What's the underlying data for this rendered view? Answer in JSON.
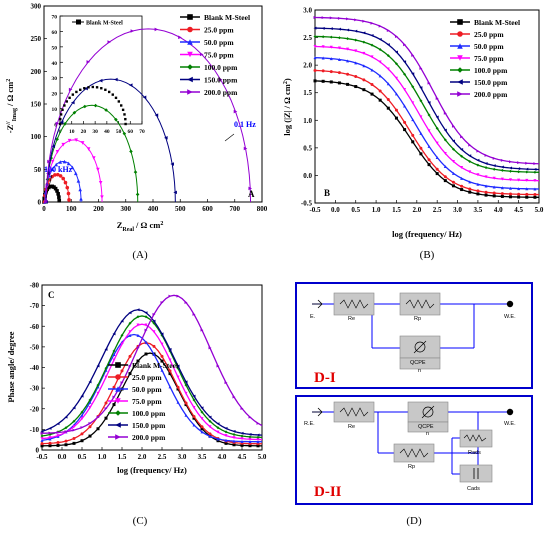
{
  "figure": {
    "colors": {
      "blank": "#000000",
      "p25": "#ee1c24",
      "p50": "#1f2bff",
      "p75": "#ff00ff",
      "p100": "#008000",
      "p150": "#000080",
      "p200": "#9400d3",
      "annotation": "#0000ff",
      "circuit_wire": "#0000ff",
      "circuit_box": "#c8c8c8",
      "circuit_label": "#e00000"
    },
    "legend": [
      "Blank M-Steel",
      "25.0 ppm",
      "50.0 ppm",
      "75.0 ppm",
      "100.0 ppm",
      "150.0 ppm",
      "200.0 ppm"
    ],
    "captions": {
      "a": "(A)",
      "b": "(B)",
      "c": "(C)",
      "d": "(D)"
    },
    "panel_letters": {
      "a": "A",
      "b": "B",
      "c": "C"
    },
    "circuit": {
      "d1": {
        "title": "D-I",
        "re": "E.",
        "we": "W.E.",
        "elements": [
          "Re",
          "Rp",
          "QCPE",
          "n"
        ]
      },
      "d2": {
        "title": "D-II",
        "re": "R.E.",
        "we": "W.E.",
        "elements": [
          "Re",
          "QCPE",
          "n",
          "Rads",
          "Rp",
          "Cads"
        ]
      }
    }
  },
  "chart_data": [
    {
      "type": "scatter",
      "panel": "A",
      "xlabel_main": "Z",
      "xlabel_sub": "Real",
      "xlabel_unit": "/ Ω cm",
      "ylabel_main": "-Z",
      "ylabel_sub": "Imag",
      "ylabel_unit": "/ Ω cm",
      "xlim": [
        0,
        800
      ],
      "ylim": [
        0,
        300
      ],
      "xticks": [
        0,
        100,
        200,
        300,
        400,
        500,
        600,
        700,
        800
      ],
      "yticks": [
        0,
        50,
        100,
        150,
        200,
        250,
        300
      ],
      "annotations": [
        "100 kHz",
        "0.1 Hz"
      ],
      "series": [
        {
          "name": "Blank M-Steel",
          "center": 28,
          "radius": 28,
          "max": 24
        },
        {
          "name": "25.0 ppm",
          "center": 47,
          "radius": 45,
          "max": 42
        },
        {
          "name": "50.0 ppm",
          "center": 70,
          "radius": 66,
          "max": 62
        },
        {
          "name": "75.0 ppm",
          "center": 110,
          "radius": 103,
          "max": 95
        },
        {
          "name": "100.0 ppm",
          "center": 176,
          "radius": 168,
          "max": 148
        },
        {
          "name": "150.0 ppm",
          "center": 245,
          "radius": 237,
          "max": 188
        },
        {
          "name": "200.0 ppm",
          "center": 383,
          "radius": 375,
          "max": 265
        }
      ],
      "inset": {
        "legend": "Blank M-Steel",
        "xlim": [
          0,
          70
        ],
        "ylim": [
          0,
          70
        ],
        "xticks": [
          0,
          10,
          20,
          30,
          40,
          50,
          60,
          70
        ],
        "yticks": [
          0,
          10,
          20,
          30,
          40,
          50,
          60,
          70
        ],
        "center": 28,
        "radius": 28,
        "max": 24
      }
    },
    {
      "type": "line",
      "panel": "B",
      "xlabel": "log (frequency/ Hz)",
      "ylabel": "log (|Z| / Ω cm",
      "xlim": [
        -0.5,
        5.0
      ],
      "ylim": [
        -0.5,
        3.0
      ],
      "xticks": [
        -0.5,
        0.0,
        0.5,
        1.0,
        1.5,
        2.0,
        2.5,
        3.0,
        3.5,
        4.0,
        4.5,
        5.0
      ],
      "yticks": [
        -0.5,
        0.0,
        0.5,
        1.0,
        1.5,
        2.0,
        2.5,
        3.0
      ],
      "series": [
        {
          "name": "Blank M-Steel",
          "high": 1.73,
          "low": -0.4,
          "mid": 1.85
        },
        {
          "name": "25.0 ppm",
          "high": 1.92,
          "low": -0.35,
          "mid": 1.85
        },
        {
          "name": "50.0 ppm",
          "high": 2.15,
          "low": -0.25,
          "mid": 1.95
        },
        {
          "name": "75.0 ppm",
          "high": 2.35,
          "low": -0.1,
          "mid": 2.05
        },
        {
          "name": "100.0 ppm",
          "high": 2.53,
          "low": 0.05,
          "mid": 2.15
        },
        {
          "name": "150.0 ppm",
          "high": 2.68,
          "low": 0.1,
          "mid": 2.25
        },
        {
          "name": "200.0 ppm",
          "high": 2.87,
          "low": 0.2,
          "mid": 2.4
        }
      ]
    },
    {
      "type": "line",
      "panel": "C",
      "xlabel": "log (frequency/ Hz)",
      "ylabel": "Phase angle/ degree",
      "xlim": [
        -0.5,
        5.0
      ],
      "ylim": [
        0,
        -80
      ],
      "xticks": [
        -0.5,
        0.0,
        0.5,
        1.0,
        1.5,
        2.0,
        2.5,
        3.0,
        3.5,
        4.0,
        4.5,
        5.0
      ],
      "yticks": [
        0,
        -10,
        -20,
        -30,
        -40,
        -50,
        -60,
        -70,
        -80
      ],
      "series": [
        {
          "name": "Blank M-Steel",
          "peak_x": 2.2,
          "peak": 47,
          "width": 1.0,
          "start": 2
        },
        {
          "name": "25.0 ppm",
          "peak_x": 2.1,
          "peak": 52,
          "width": 1.05,
          "start": 3
        },
        {
          "name": "50.0 ppm",
          "peak_x": 1.8,
          "peak": 56,
          "width": 1.1,
          "start": 4
        },
        {
          "name": "75.0 ppm",
          "peak_x": 2.0,
          "peak": 61,
          "width": 1.15,
          "start": 5
        },
        {
          "name": "100.0 ppm",
          "peak_x": 2.0,
          "peak": 65,
          "width": 1.2,
          "start": 6
        },
        {
          "name": "150.0 ppm",
          "peak_x": 1.9,
          "peak": 68,
          "width": 1.3,
          "start": 7
        },
        {
          "name": "200.0 ppm",
          "peak_x": 2.8,
          "peak": 75,
          "width": 1.3,
          "start": 8
        }
      ]
    }
  ]
}
